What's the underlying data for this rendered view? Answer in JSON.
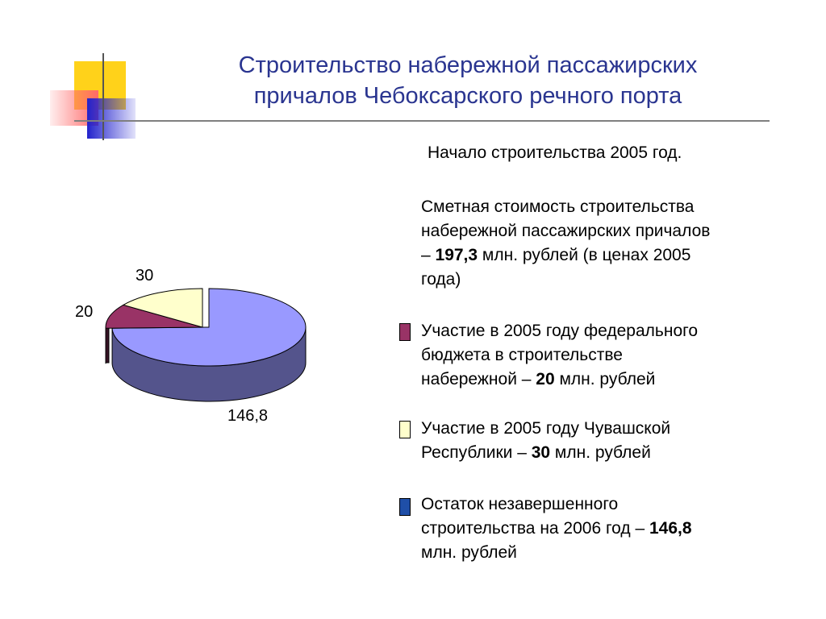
{
  "slide": {
    "title_line1": "Строительство набережной пассажирских",
    "title_line2": "причалов Чебоксарского речного порта",
    "start": "Начало строительства 2005 год.",
    "estimate": {
      "line1": "Сметная стоимость строительства",
      "line2": "набережной пассажирских причалов",
      "line3_prefix": "– ",
      "line3_value": "197,3",
      "line3_suffix": " млн. рублей (в ценах 2005",
      "line4": "года)"
    },
    "legend": [
      {
        "color": "#993366",
        "line1": "Участие в 2005 году федерального",
        "line2": "бюджета в строительстве",
        "line3_prefix": "набережной – ",
        "line3_value": "20",
        "line3_suffix": " млн. рублей"
      },
      {
        "color": "#ffffcc",
        "line1": "Участие в 2005 году Чувашской",
        "line2_prefix": "Республики – ",
        "line2_value": "30",
        "line2_suffix": " млн. рублей"
      },
      {
        "color": "#1f4fa8",
        "line1": "Остаток незавершенного",
        "line2_prefix": "строительства на 2006 год – ",
        "line2_value": "146,8",
        "line3": "млн. рублей"
      }
    ]
  },
  "colors": {
    "title": "#2a3590",
    "slice_main": "#9999ff",
    "slice_federal": "#993366",
    "slice_chuvash": "#ffffcc"
  },
  "chart_data": {
    "type": "pie",
    "title": "",
    "categories": [
      "146,8",
      "20",
      "30"
    ],
    "values": [
      146.8,
      20,
      30
    ],
    "labels": [
      "146,8",
      "20",
      "30"
    ],
    "colors": [
      "#9999ff",
      "#993366",
      "#ffffcc"
    ],
    "legend": "none",
    "style": "3d"
  }
}
